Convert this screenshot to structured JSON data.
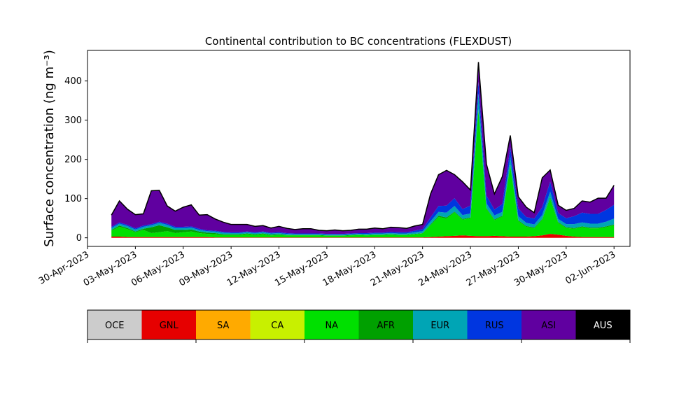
{
  "chart_data": {
    "type": "area",
    "title": "Continental contribution to BC concentrations (FLEXDUST)",
    "ylabel": "Surface concentration (ng m⁻³)",
    "xlabel": "",
    "stacked": true,
    "x_start": "2023-05-01T12:00",
    "x_step_days": 0.5,
    "xlim": [
      "2023-04-30",
      "2023-06-03"
    ],
    "ylim": [
      -22,
      478
    ],
    "yticks": [
      0,
      100,
      200,
      300,
      400
    ],
    "xticks": [
      "30-Apr-2023",
      "03-May-2023",
      "06-May-2023",
      "09-May-2023",
      "12-May-2023",
      "15-May-2023",
      "18-May-2023",
      "21-May-2023",
      "24-May-2023",
      "27-May-2023",
      "30-May-2023",
      "02-Jun-2023"
    ],
    "x": [
      "2023-05-01T12:00",
      "2023-05-02T00:00",
      "2023-05-02T12:00",
      "2023-05-03T00:00",
      "2023-05-03T12:00",
      "2023-05-04T00:00",
      "2023-05-04T12:00",
      "2023-05-05T00:00",
      "2023-05-05T12:00",
      "2023-05-06T00:00",
      "2023-05-06T12:00",
      "2023-05-07T00:00",
      "2023-05-07T12:00",
      "2023-05-08T00:00",
      "2023-05-08T12:00",
      "2023-05-09T00:00",
      "2023-05-09T12:00",
      "2023-05-10T00:00",
      "2023-05-10T12:00",
      "2023-05-11T00:00",
      "2023-05-11T12:00",
      "2023-05-12T00:00",
      "2023-05-12T12:00",
      "2023-05-13T00:00",
      "2023-05-13T12:00",
      "2023-05-14T00:00",
      "2023-05-14T12:00",
      "2023-05-15T00:00",
      "2023-05-15T12:00",
      "2023-05-16T00:00",
      "2023-05-16T12:00",
      "2023-05-17T00:00",
      "2023-05-17T12:00",
      "2023-05-18T00:00",
      "2023-05-18T12:00",
      "2023-05-19T00:00",
      "2023-05-19T12:00",
      "2023-05-20T00:00",
      "2023-05-20T12:00",
      "2023-05-21T00:00",
      "2023-05-21T12:00",
      "2023-05-22T00:00",
      "2023-05-22T12:00",
      "2023-05-23T00:00",
      "2023-05-23T12:00",
      "2023-05-24T00:00",
      "2023-05-24T12:00",
      "2023-05-25T00:00",
      "2023-05-25T12:00",
      "2023-05-26T00:00",
      "2023-05-26T12:00",
      "2023-05-27T00:00",
      "2023-05-27T12:00",
      "2023-05-28T00:00",
      "2023-05-28T12:00",
      "2023-05-29T00:00",
      "2023-05-29T12:00",
      "2023-05-30T00:00",
      "2023-05-30T12:00",
      "2023-05-31T00:00",
      "2023-05-31T12:00",
      "2023-06-01T00:00",
      "2023-06-01T12:00",
      "2023-06-02T00:00"
    ],
    "series": [
      {
        "name": "OCE",
        "color": "#cccccc",
        "values": [
          0,
          0,
          0,
          0,
          0,
          0,
          0,
          0,
          0,
          0,
          0,
          0,
          0,
          0,
          0,
          0,
          0,
          0,
          0,
          0,
          0,
          0,
          0,
          0,
          0,
          0,
          0,
          0,
          0,
          0,
          0,
          0,
          0,
          0,
          0,
          0,
          0,
          0,
          0,
          0,
          0,
          0,
          0,
          0,
          0,
          0,
          0,
          0,
          0,
          0,
          0,
          0,
          0,
          0,
          0,
          0,
          0,
          0,
          0,
          0,
          0,
          0,
          0,
          0
        ]
      },
      {
        "name": "GNL",
        "color": "#e60000",
        "values": [
          3,
          3,
          2,
          2,
          2,
          2,
          2,
          2,
          2,
          2,
          2,
          2,
          2,
          1,
          1,
          1,
          1,
          1,
          1,
          1,
          1,
          1,
          1,
          1,
          1,
          1,
          1,
          1,
          1,
          1,
          1,
          1,
          1,
          1,
          1,
          1,
          1,
          1,
          1,
          1,
          2,
          3,
          4,
          5,
          6,
          5,
          4,
          4,
          5,
          4,
          3,
          3,
          3,
          4,
          6,
          10,
          8,
          5,
          3,
          2,
          2,
          2,
          2,
          2
        ]
      },
      {
        "name": "SA",
        "color": "#ffaa00",
        "values": [
          0,
          0,
          0,
          0,
          0,
          0,
          0,
          0,
          0,
          0,
          0,
          0,
          0,
          0,
          0,
          0,
          0,
          0,
          0,
          0,
          0,
          0,
          0,
          0,
          0,
          0,
          0,
          0,
          0,
          0,
          0,
          0,
          0,
          0,
          0,
          0,
          0,
          0,
          0,
          0,
          0,
          0,
          0,
          0,
          0,
          0,
          0,
          0,
          0,
          0,
          0,
          0,
          0,
          0,
          0,
          0,
          0,
          0,
          0,
          0,
          0,
          0,
          0,
          0
        ]
      },
      {
        "name": "CA",
        "color": "#c8f000",
        "values": [
          0,
          0,
          0,
          0,
          0,
          0,
          0,
          0,
          0,
          0,
          0,
          0,
          0,
          0,
          0,
          0,
          0,
          0,
          0,
          0,
          0,
          0,
          0,
          0,
          0,
          0,
          0,
          0,
          0,
          0,
          0,
          0,
          0,
          0,
          0,
          0,
          0,
          0,
          0,
          0,
          0,
          0,
          0,
          0,
          0,
          0,
          0,
          0,
          0,
          0,
          0,
          0,
          0,
          0,
          0,
          0,
          0,
          0,
          0,
          0,
          0,
          0,
          0,
          0
        ]
      },
      {
        "name": "NA",
        "color": "#00e000",
        "values": [
          15,
          25,
          20,
          12,
          18,
          10,
          12,
          15,
          10,
          12,
          14,
          10,
          8,
          8,
          6,
          6,
          6,
          8,
          6,
          8,
          5,
          6,
          5,
          5,
          5,
          5,
          5,
          4,
          4,
          4,
          5,
          6,
          5,
          6,
          6,
          7,
          6,
          6,
          8,
          10,
          30,
          50,
          45,
          60,
          40,
          45,
          320,
          70,
          40,
          50,
          180,
          40,
          25,
          20,
          40,
          90,
          30,
          20,
          20,
          25,
          22,
          22,
          25,
          30
        ]
      },
      {
        "name": "AFR",
        "color": "#00a000",
        "values": [
          2,
          3,
          3,
          2,
          3,
          15,
          18,
          10,
          8,
          6,
          5,
          4,
          3,
          3,
          2,
          2,
          2,
          2,
          2,
          2,
          2,
          2,
          1,
          1,
          1,
          1,
          1,
          1,
          1,
          1,
          1,
          1,
          1,
          1,
          1,
          1,
          1,
          1,
          1,
          1,
          2,
          3,
          3,
          2,
          2,
          2,
          4,
          2,
          2,
          2,
          3,
          2,
          2,
          2,
          2,
          3,
          2,
          2,
          2,
          2,
          2,
          2,
          2,
          2
        ]
      },
      {
        "name": "EUR",
        "color": "#00a5b5",
        "values": [
          5,
          5,
          5,
          5,
          5,
          5,
          6,
          6,
          5,
          5,
          5,
          4,
          4,
          4,
          4,
          3,
          3,
          3,
          3,
          3,
          3,
          3,
          3,
          2,
          2,
          2,
          2,
          2,
          2,
          2,
          2,
          2,
          3,
          3,
          3,
          3,
          3,
          3,
          4,
          5,
          8,
          10,
          12,
          14,
          10,
          10,
          40,
          12,
          10,
          10,
          20,
          10,
          8,
          8,
          10,
          15,
          8,
          8,
          10,
          10,
          10,
          10,
          12,
          15
        ]
      },
      {
        "name": "RUS",
        "color": "#0036e0",
        "values": [
          3,
          3,
          3,
          3,
          3,
          3,
          3,
          3,
          3,
          3,
          3,
          3,
          2,
          2,
          2,
          2,
          2,
          2,
          2,
          2,
          2,
          2,
          2,
          2,
          2,
          2,
          2,
          2,
          2,
          2,
          2,
          2,
          2,
          2,
          2,
          3,
          3,
          3,
          4,
          5,
          10,
          15,
          18,
          20,
          15,
          20,
          30,
          20,
          15,
          20,
          25,
          20,
          15,
          15,
          20,
          25,
          15,
          15,
          20,
          25,
          25,
          25,
          30,
          35
        ]
      },
      {
        "name": "ASI",
        "color": "#6000a0",
        "values": [
          30,
          55,
          40,
          35,
          30,
          85,
          80,
          45,
          40,
          50,
          55,
          35,
          40,
          30,
          25,
          20,
          20,
          18,
          15,
          15,
          12,
          15,
          12,
          10,
          12,
          12,
          8,
          8,
          10,
          8,
          8,
          10,
          10,
          12,
          10,
          12,
          12,
          10,
          12,
          12,
          60,
          80,
          90,
          60,
          70,
          40,
          50,
          80,
          40,
          70,
          30,
          30,
          25,
          15,
          75,
          30,
          20,
          20,
          20,
          30,
          30,
          40,
          30,
          50
        ]
      },
      {
        "name": "AUS",
        "color": "#000000",
        "values": [
          0,
          0,
          0,
          0,
          0,
          0,
          0,
          0,
          0,
          0,
          0,
          0,
          0,
          0,
          0,
          0,
          0,
          0,
          0,
          0,
          0,
          0,
          0,
          0,
          0,
          0,
          0,
          0,
          0,
          0,
          0,
          0,
          0,
          0,
          0,
          0,
          0,
          0,
          0,
          0,
          0,
          0,
          0,
          0,
          0,
          0,
          0,
          0,
          0,
          0,
          0,
          0,
          0,
          0,
          0,
          0,
          0,
          0,
          0,
          0,
          0,
          0,
          0,
          0
        ]
      }
    ]
  },
  "legend": {
    "items": [
      {
        "label": "OCE",
        "color": "#cccccc",
        "text_color": "#000000"
      },
      {
        "label": "GNL",
        "color": "#e60000",
        "text_color": "#000000"
      },
      {
        "label": "SA",
        "color": "#ffaa00",
        "text_color": "#000000"
      },
      {
        "label": "CA",
        "color": "#c8f000",
        "text_color": "#000000"
      },
      {
        "label": "NA",
        "color": "#00e000",
        "text_color": "#000000"
      },
      {
        "label": "AFR",
        "color": "#00a000",
        "text_color": "#000000"
      },
      {
        "label": "EUR",
        "color": "#00a5b5",
        "text_color": "#000000"
      },
      {
        "label": "RUS",
        "color": "#0036e0",
        "text_color": "#000000"
      },
      {
        "label": "ASI",
        "color": "#6000a0",
        "text_color": "#000000"
      },
      {
        "label": "AUS",
        "color": "#000000",
        "text_color": "#ffffff"
      }
    ]
  }
}
